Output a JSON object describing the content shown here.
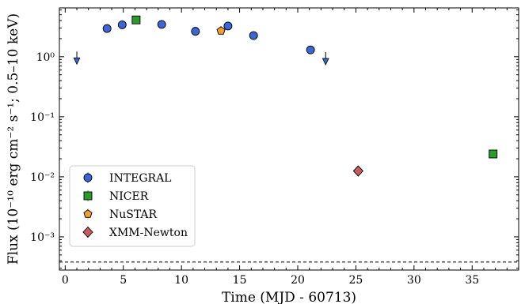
{
  "chart_data": {
    "type": "scatter",
    "title": "",
    "xlabel": "Time (MJD - 60713)",
    "ylabel": "Flux (10⁻¹⁰ erg cm⁻² s⁻¹; 0.5–10 keV)",
    "xlim": [
      -0.5,
      39.0
    ],
    "ylim": [
      0.00028,
      6.5
    ],
    "yscale": "log",
    "x_ticks": [
      0,
      5,
      10,
      15,
      20,
      25,
      30,
      35
    ],
    "x_tick_labels": [
      "0",
      "5",
      "10",
      "15",
      "20",
      "25",
      "30",
      "35"
    ],
    "y_ticks": [
      0.001,
      0.01,
      0.1,
      1
    ],
    "y_tick_labels": [
      "10⁻³",
      "10⁻²",
      "10⁻¹",
      "10⁰"
    ],
    "grid": false,
    "legend_position": "lower-left",
    "reference_line": {
      "y": 0.00038,
      "style": "dashed"
    },
    "series": [
      {
        "name": "INTEGRAL",
        "marker": "circle",
        "color": "#3b67d6",
        "points": [
          {
            "x": 3.6,
            "y": 2.95
          },
          {
            "x": 4.9,
            "y": 3.4
          },
          {
            "x": 8.3,
            "y": 3.45
          },
          {
            "x": 11.2,
            "y": 2.65
          },
          {
            "x": 14.0,
            "y": 3.25
          },
          {
            "x": 16.2,
            "y": 2.25
          },
          {
            "x": 21.1,
            "y": 1.3
          }
        ],
        "upper_limits": [
          {
            "x": 1.0,
            "y": 0.9
          },
          {
            "x": 22.4,
            "y": 0.88
          }
        ]
      },
      {
        "name": "NICER",
        "marker": "square",
        "color": "#2a9a2a",
        "points": [
          {
            "x": 6.1,
            "y": 4.1
          },
          {
            "x": 36.8,
            "y": 0.024
          }
        ]
      },
      {
        "name": "NuSTAR",
        "marker": "pentagon",
        "color": "#f0a030",
        "points": [
          {
            "x": 13.4,
            "y": 2.7
          }
        ]
      },
      {
        "name": "XMM-Newton",
        "marker": "diamond",
        "color": "#c85c5c",
        "points": [
          {
            "x": 25.2,
            "y": 0.0125
          }
        ]
      }
    ]
  }
}
